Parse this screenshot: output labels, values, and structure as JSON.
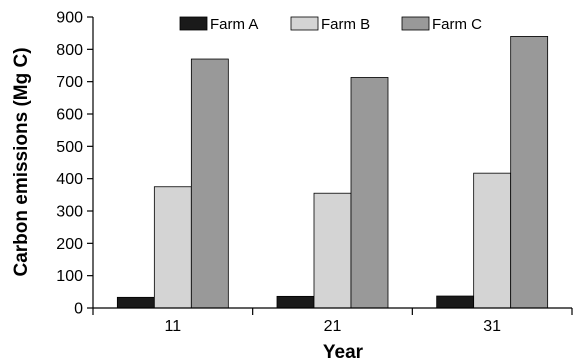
{
  "chart_data": {
    "type": "bar",
    "categories": [
      "11",
      "21",
      "31"
    ],
    "series": [
      {
        "name": "Farm A",
        "values": [
          33,
          36,
          37
        ],
        "color": "#1a1a1a"
      },
      {
        "name": "Farm B",
        "values": [
          375,
          355,
          417
        ],
        "color": "#d4d4d4"
      },
      {
        "name": "Farm C",
        "values": [
          770,
          713,
          840
        ],
        "color": "#999999"
      }
    ],
    "title": "",
    "xlabel": "Year",
    "ylabel": "Carbon emissions (Mg C)",
    "ylim": [
      0,
      900
    ],
    "yticks": [
      0,
      100,
      200,
      300,
      400,
      500,
      600,
      700,
      800,
      900
    ],
    "grid": false,
    "legend_position": "top"
  }
}
